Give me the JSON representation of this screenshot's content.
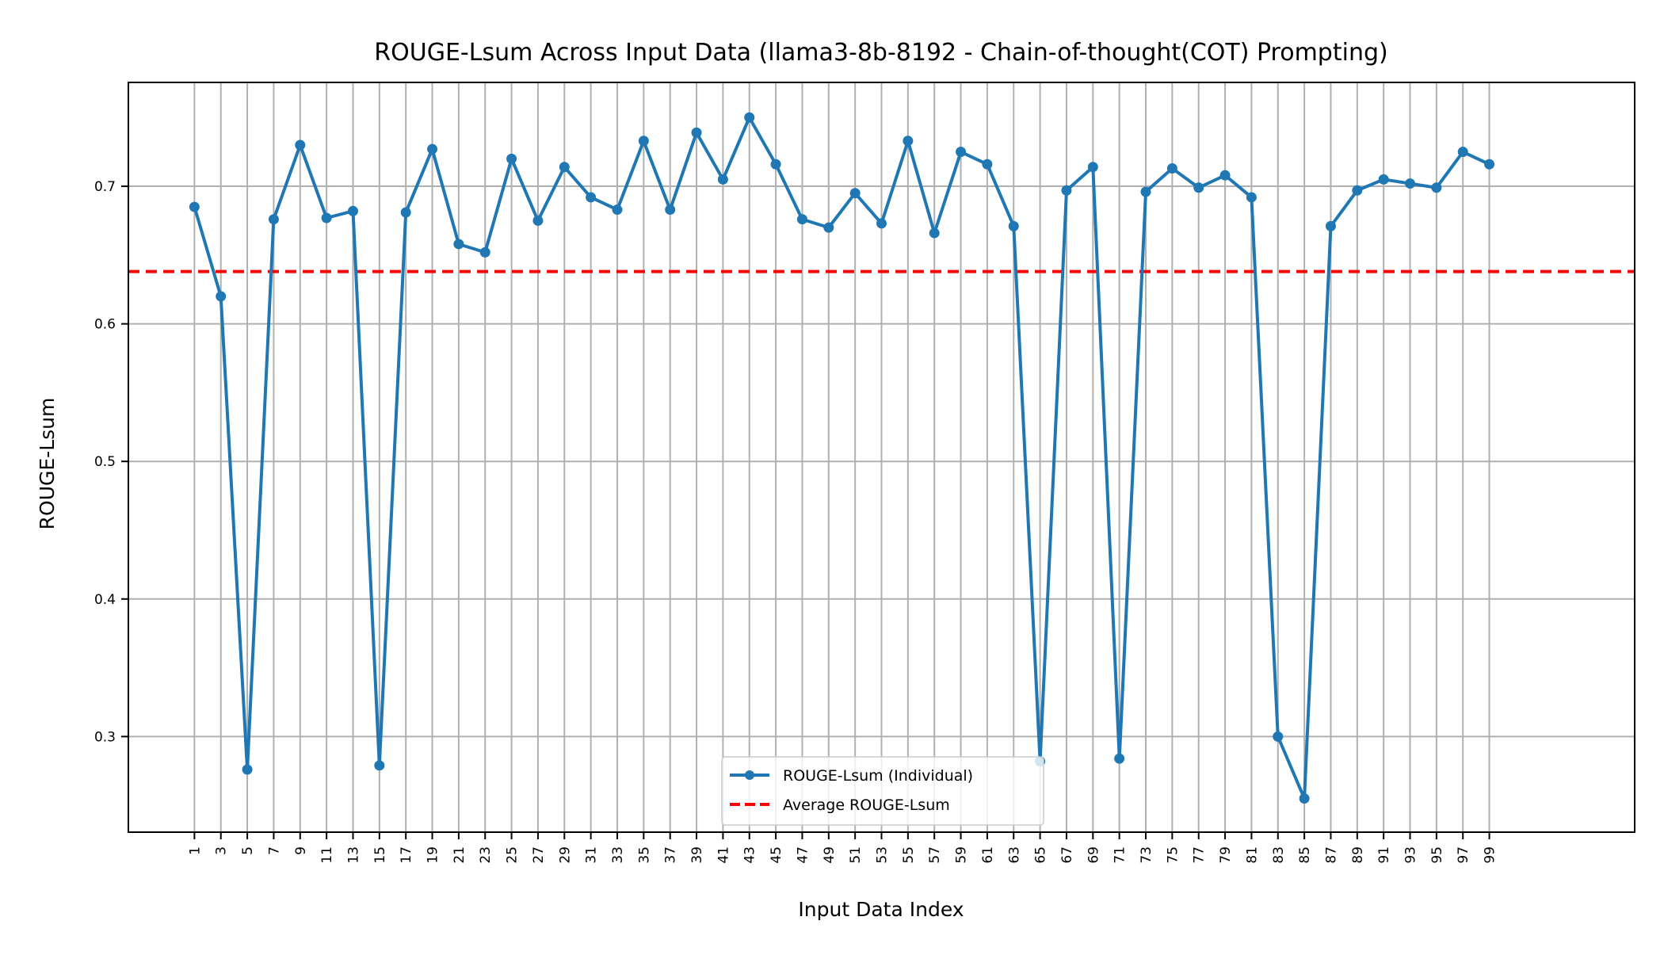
{
  "chart_data": {
    "type": "line",
    "title": "ROUGE-Lsum Across Input Data (llama3-8b-8192 - Chain-of-thought(COT) Prompting)",
    "xlabel": "Input Data Index",
    "ylabel": "ROUGE-Lsum",
    "xlim": [
      -4,
      110
    ],
    "ylim": [
      0.2305,
      0.7755
    ],
    "yticks": [
      0.3,
      0.4,
      0.5,
      0.6,
      0.7
    ],
    "ytick_labels": [
      "0.3",
      "0.4",
      "0.5",
      "0.6",
      "0.7"
    ],
    "grid": true,
    "legend_position": "lower center",
    "colors": {
      "series": "#1f77b4",
      "average": "#ff0000",
      "grid": "#b0b0b0"
    },
    "series": [
      {
        "name": "ROUGE-Lsum (Individual)",
        "style": "line-marker",
        "x": [
          1,
          3,
          5,
          7,
          9,
          11,
          13,
          15,
          17,
          19,
          21,
          23,
          25,
          27,
          29,
          31,
          33,
          35,
          37,
          39,
          41,
          43,
          45,
          47,
          49,
          51,
          53,
          55,
          57,
          59,
          61,
          63,
          65,
          67,
          69,
          71,
          73,
          75,
          77,
          79,
          81,
          83,
          85,
          87,
          89,
          91,
          93,
          95,
          97,
          99
        ],
        "values": [
          0.685,
          0.62,
          0.276,
          0.676,
          0.73,
          0.677,
          0.682,
          0.279,
          0.681,
          0.727,
          0.658,
          0.652,
          0.72,
          0.675,
          0.714,
          0.692,
          0.683,
          0.733,
          0.683,
          0.739,
          0.705,
          0.75,
          0.716,
          0.676,
          0.67,
          0.695,
          0.673,
          0.733,
          0.666,
          0.725,
          0.716,
          0.671,
          0.282,
          0.697,
          0.714,
          0.284,
          0.696,
          0.713,
          0.699,
          0.708,
          0.692,
          0.3,
          0.255,
          0.671,
          0.697,
          0.705,
          0.702,
          0.699,
          0.725,
          0.716
        ]
      },
      {
        "name": "Average ROUGE-Lsum",
        "style": "dashed",
        "value": 0.638
      }
    ],
    "categories": [
      "1",
      "3",
      "5",
      "7",
      "9",
      "11",
      "13",
      "15",
      "17",
      "19",
      "21",
      "23",
      "25",
      "27",
      "29",
      "31",
      "33",
      "35",
      "37",
      "39",
      "41",
      "43",
      "45",
      "47",
      "49",
      "51",
      "53",
      "55",
      "57",
      "59",
      "61",
      "63",
      "65",
      "67",
      "69",
      "71",
      "73",
      "75",
      "77",
      "79",
      "81",
      "83",
      "85",
      "87",
      "89",
      "91",
      "93",
      "95",
      "97",
      "99"
    ]
  }
}
